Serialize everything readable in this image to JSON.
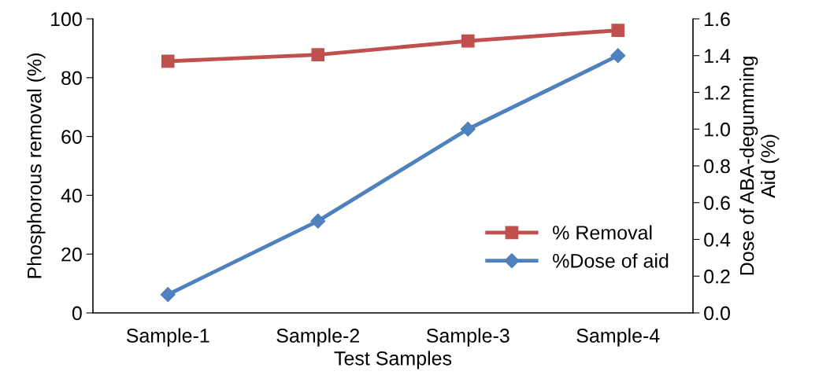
{
  "chart_data": {
    "type": "line",
    "xlabel": "Test Samples",
    "ylabel": "Phosphorous removal (%)",
    "y2label": "Dose of ABA-degumming\nAid (%)",
    "categories": [
      "Sample-1",
      "Sample-2",
      "Sample-3",
      "Sample-4"
    ],
    "series": [
      {
        "name": "% Removal",
        "color": "#c0504d",
        "marker": "square",
        "values": [
          85.6,
          87.8,
          92.5,
          96.1
        ]
      },
      {
        "name": "%Dose of aid",
        "color": "#4f81bd",
        "marker": "diamond",
        "axis": "y2",
        "values": [
          0.1,
          0.5,
          1.0,
          1.4
        ]
      }
    ],
    "ylim": [
      0,
      100
    ],
    "yticks": [
      0,
      20,
      40,
      60,
      80,
      100
    ],
    "y2lim": [
      0,
      1.6
    ],
    "y2ticks": [
      {
        "value": 0,
        "label": "0.0"
      },
      {
        "value": 0.2,
        "label": "0.2"
      },
      {
        "value": 0.4,
        "label": "0.4"
      },
      {
        "value": 0.6,
        "label": "0.6"
      },
      {
        "value": 0.8,
        "label": "0.8"
      },
      {
        "value": 1.0,
        "label": "1.0"
      },
      {
        "value": 1.2,
        "label": "1.2"
      },
      {
        "value": 1.4,
        "label": "1.4"
      },
      {
        "value": 1.6,
        "label": "1.6"
      }
    ],
    "grid": false,
    "legend": "bottom right",
    "line_style": "solid"
  }
}
